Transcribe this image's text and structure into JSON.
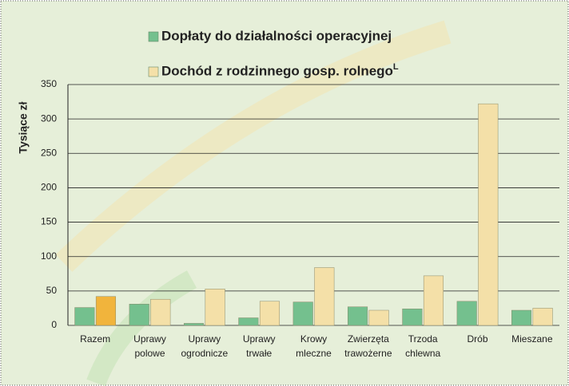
{
  "chart_data": {
    "type": "bar",
    "y_label": "Tysiące zł",
    "categories": [
      "Razem",
      "Uprawy polowe",
      "Uprawy ogrodnicze",
      "Uprawy trwałe",
      "Krowy mleczne",
      "Zwierzęta trawożerne",
      "Trzoda chlewna",
      "Drób",
      "Mieszane"
    ],
    "series": [
      {
        "name": "Dopłaty do działalności operacyjnej",
        "color": "#74c08e",
        "values": [
          26,
          31,
          3,
          11,
          34,
          27,
          24,
          35,
          22
        ]
      },
      {
        "name": "Dochód z rodzinnego gosp. rolnego",
        "name_superscript": "L",
        "color": "#f4e0a8",
        "highlight": {
          "index": 0,
          "color": "#f1b43c"
        },
        "values": [
          42,
          38,
          53,
          35,
          84,
          22,
          72,
          322,
          25
        ]
      }
    ],
    "ylim": [
      0,
      350
    ],
    "yticks": [
      0,
      50,
      100,
      150,
      200,
      250,
      300,
      350
    ],
    "grid": true
  }
}
